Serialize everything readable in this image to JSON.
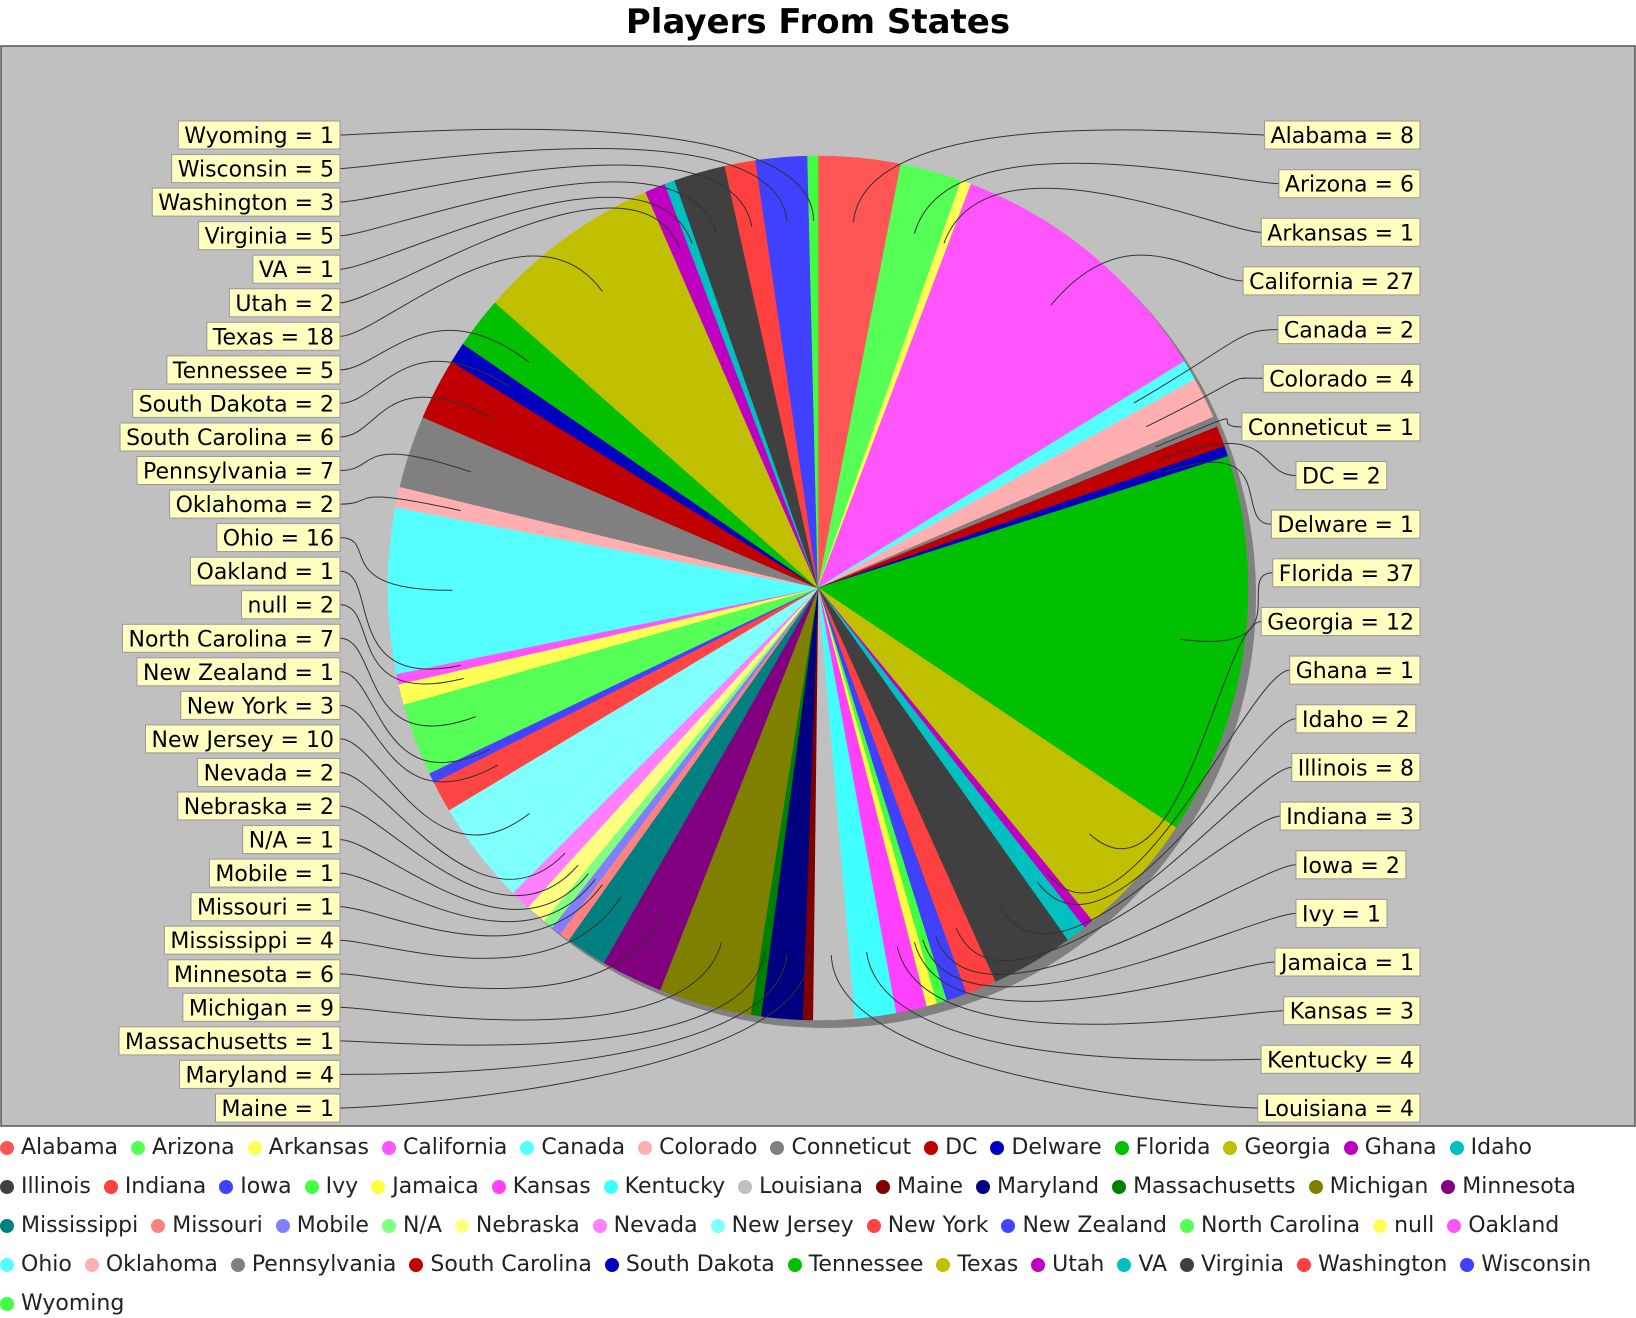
{
  "chart_data": {
    "type": "pie",
    "title": "Players From States",
    "label_format": " = ",
    "legend_position": "bottom",
    "series": [
      {
        "name": "Alabama",
        "value": 8,
        "color": "#ff5555"
      },
      {
        "name": "Arizona",
        "value": 6,
        "color": "#55ff55"
      },
      {
        "name": "Arkansas",
        "value": 1,
        "color": "#ffff55"
      },
      {
        "name": "California",
        "value": 27,
        "color": "#ff55ff"
      },
      {
        "name": "Canada",
        "value": 2,
        "color": "#55ffff"
      },
      {
        "name": "Colorado",
        "value": 4,
        "color": "#ffafaf"
      },
      {
        "name": "Conneticut",
        "value": 1,
        "color": "#808080"
      },
      {
        "name": "DC",
        "value": 2,
        "color": "#c00000"
      },
      {
        "name": "Delware",
        "value": 1,
        "color": "#0000c0"
      },
      {
        "name": "Florida",
        "value": 37,
        "color": "#00c000"
      },
      {
        "name": "Georgia",
        "value": 12,
        "color": "#c0c000"
      },
      {
        "name": "Ghana",
        "value": 1,
        "color": "#c000c0"
      },
      {
        "name": "Idaho",
        "value": 2,
        "color": "#00c0c0"
      },
      {
        "name": "Illinois",
        "value": 8,
        "color": "#404040"
      },
      {
        "name": "Indiana",
        "value": 3,
        "color": "#ff4040"
      },
      {
        "name": "Iowa",
        "value": 2,
        "color": "#4040ff"
      },
      {
        "name": "Ivy",
        "value": 1,
        "color": "#40ff40"
      },
      {
        "name": "Jamaica",
        "value": 1,
        "color": "#ffff40"
      },
      {
        "name": "Kansas",
        "value": 3,
        "color": "#ff40ff"
      },
      {
        "name": "Kentucky",
        "value": 4,
        "color": "#40ffff"
      },
      {
        "name": "Louisiana",
        "value": 4,
        "color": "#c0c0c0"
      },
      {
        "name": "Maine",
        "value": 1,
        "color": "#800000"
      },
      {
        "name": "Maryland",
        "value": 4,
        "color": "#000080"
      },
      {
        "name": "Massachusetts",
        "value": 1,
        "color": "#008000"
      },
      {
        "name": "Michigan",
        "value": 9,
        "color": "#808000"
      },
      {
        "name": "Minnesota",
        "value": 6,
        "color": "#800080"
      },
      {
        "name": "Mississippi",
        "value": 4,
        "color": "#008080"
      },
      {
        "name": "Missouri",
        "value": 1,
        "color": "#ff8080"
      },
      {
        "name": "Mobile",
        "value": 1,
        "color": "#8080ff"
      },
      {
        "name": "N/A",
        "value": 1,
        "color": "#80ff80"
      },
      {
        "name": "Nebraska",
        "value": 2,
        "color": "#ffff80"
      },
      {
        "name": "Nevada",
        "value": 2,
        "color": "#ff80ff"
      },
      {
        "name": "New Jersey",
        "value": 10,
        "color": "#80ffff"
      },
      {
        "name": "New York",
        "value": 3,
        "color": "#ff4444"
      },
      {
        "name": "New Zealand",
        "value": 1,
        "color": "#4444ff"
      },
      {
        "name": "North Carolina",
        "value": 7,
        "color": "#55ff55"
      },
      {
        "name": "null",
        "value": 2,
        "color": "#ffff55"
      },
      {
        "name": "Oakland",
        "value": 1,
        "color": "#ff55ff"
      },
      {
        "name": "Ohio",
        "value": 16,
        "color": "#55ffff"
      },
      {
        "name": "Oklahoma",
        "value": 2,
        "color": "#ffafaf"
      },
      {
        "name": "Pennsylvania",
        "value": 7,
        "color": "#808080"
      },
      {
        "name": "South Carolina",
        "value": 6,
        "color": "#c00000"
      },
      {
        "name": "South Dakota",
        "value": 2,
        "color": "#0000c0"
      },
      {
        "name": "Tennessee",
        "value": 5,
        "color": "#00c000"
      },
      {
        "name": "Texas",
        "value": 18,
        "color": "#c0c000"
      },
      {
        "name": "Utah",
        "value": 2,
        "color": "#c000c0"
      },
      {
        "name": "VA",
        "value": 1,
        "color": "#00c0c0"
      },
      {
        "name": "Virginia",
        "value": 5,
        "color": "#404040"
      },
      {
        "name": "Washington",
        "value": 3,
        "color": "#ff4040"
      },
      {
        "name": "Wisconsin",
        "value": 5,
        "color": "#4040ff"
      },
      {
        "name": "Wyoming",
        "value": 1,
        "color": "#40ff40"
      }
    ]
  },
  "colors": {
    "plot_background": "#c0c0c0",
    "label_background": "#ffffc0",
    "leader_line": "#333333"
  }
}
